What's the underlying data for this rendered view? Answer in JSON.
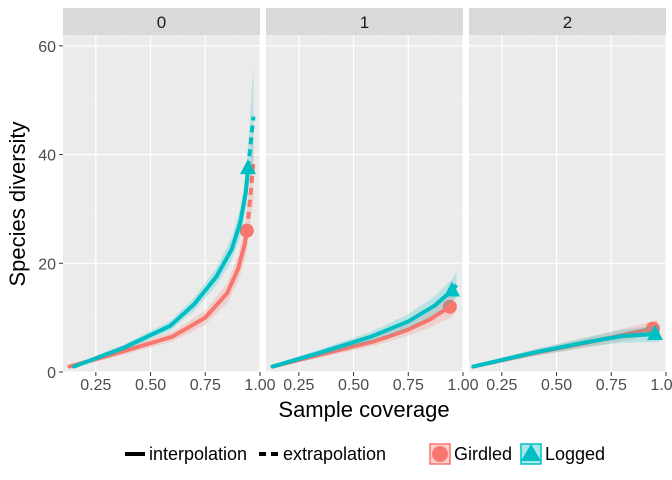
{
  "chart_data": {
    "type": "line",
    "xlabel": "Sample coverage",
    "ylabel": "Species diversity",
    "xlim": [
      0.1,
      1.0
    ],
    "ylim": [
      0,
      62
    ],
    "x_ticks": [
      0.25,
      0.5,
      0.75,
      1.0
    ],
    "x_tick_labels": [
      "0.25",
      "0.50",
      "0.75",
      "1.00"
    ],
    "y_ticks": [
      0,
      20,
      40,
      60
    ],
    "y_tick_labels": [
      "0",
      "20",
      "40",
      "60"
    ],
    "grid": true,
    "legend_position": "bottom",
    "legend": {
      "linetypes": [
        {
          "label": "interpolation",
          "style": "solid"
        },
        {
          "label": "extrapolation",
          "style": "dashed"
        }
      ],
      "groups": [
        {
          "label": "Girdled",
          "color": "#F8766D",
          "shape": "circle"
        },
        {
          "label": "Logged",
          "color": "#00BFC4",
          "shape": "triangle"
        }
      ]
    },
    "panels": [
      {
        "strip": "0",
        "series": [
          {
            "name": "Girdled",
            "color": "#F8766D",
            "interpolation": [
              [
                0.13,
                1
              ],
              [
                0.35,
                3.5
              ],
              [
                0.6,
                6.5
              ],
              [
                0.75,
                10
              ],
              [
                0.85,
                14.5
              ],
              [
                0.9,
                19
              ],
              [
                0.93,
                23.5
              ],
              [
                0.94,
                26
              ]
            ],
            "extrapolation": [
              [
                0.94,
                26
              ],
              [
                0.95,
                30
              ],
              [
                0.96,
                34
              ],
              [
                0.965,
                36.5
              ],
              [
                0.97,
                38.5
              ]
            ],
            "ci_half": [
              0.3,
              0.6,
              0.9,
              1.3,
              1.8,
              2.4,
              3.0,
              3.5
            ],
            "ci_half_ext": [
              3.5,
              4.5,
              5.5,
              6.5,
              7.5
            ],
            "observed": [
              0.94,
              26
            ]
          },
          {
            "name": "Logged",
            "color": "#00BFC4",
            "interpolation": [
              [
                0.15,
                1
              ],
              [
                0.38,
                4.5
              ],
              [
                0.59,
                8.5
              ],
              [
                0.7,
                12.5
              ],
              [
                0.8,
                17.5
              ],
              [
                0.87,
                22.5
              ],
              [
                0.91,
                27.5
              ],
              [
                0.935,
                33
              ],
              [
                0.945,
                37.5
              ]
            ],
            "extrapolation": [
              [
                0.945,
                37.5
              ],
              [
                0.955,
                41
              ],
              [
                0.962,
                44
              ],
              [
                0.97,
                47
              ]
            ],
            "ci_half": [
              0.3,
              0.6,
              0.9,
              1.2,
              1.6,
              2.1,
              2.7,
              3.3,
              4.0
            ],
            "ci_half_ext": [
              4.0,
              5.5,
              7.5,
              9.5
            ],
            "observed": [
              0.945,
              37.5
            ]
          }
        ]
      },
      {
        "strip": "1",
        "series": [
          {
            "name": "Girdled",
            "color": "#F8766D",
            "interpolation": [
              [
                0.13,
                1
              ],
              [
                0.35,
                3.2
              ],
              [
                0.6,
                5.7
              ],
              [
                0.75,
                7.8
              ],
              [
                0.85,
                9.7
              ],
              [
                0.92,
                11.5
              ],
              [
                0.94,
                12
              ]
            ],
            "extrapolation": [
              [
                0.94,
                12
              ],
              [
                0.95,
                12.5
              ],
              [
                0.96,
                13
              ]
            ],
            "ci_half": [
              0.3,
              0.5,
              0.8,
              1.1,
              1.5,
              1.9,
              2.1
            ],
            "ci_half_ext": [
              2.1,
              2.3,
              2.5
            ],
            "observed": [
              0.94,
              12
            ]
          },
          {
            "name": "Logged",
            "color": "#00BFC4",
            "interpolation": [
              [
                0.13,
                1
              ],
              [
                0.35,
                3.6
              ],
              [
                0.58,
                6.5
              ],
              [
                0.75,
                9.3
              ],
              [
                0.87,
                12.2
              ],
              [
                0.95,
                15
              ]
            ],
            "extrapolation": [
              [
                0.95,
                15
              ],
              [
                0.96,
                15.5
              ],
              [
                0.97,
                16
              ]
            ],
            "ci_half": [
              0.3,
              0.6,
              0.9,
              1.3,
              1.7,
              2.1
            ],
            "ci_half_ext": [
              2.1,
              2.3,
              2.5
            ],
            "observed": [
              0.95,
              15
            ]
          }
        ]
      },
      {
        "strip": "2",
        "series": [
          {
            "name": "Girdled",
            "color": "#F8766D",
            "interpolation": [
              [
                0.12,
                1
              ],
              [
                0.4,
                3.5
              ],
              [
                0.65,
                5.5
              ],
              [
                0.8,
                6.8
              ],
              [
                0.94,
                8
              ]
            ],
            "extrapolation": [
              [
                0.94,
                8
              ],
              [
                0.96,
                8.2
              ]
            ],
            "ci_half": [
              0.3,
              0.6,
              0.9,
              1.1,
              1.3
            ],
            "ci_half_ext": [
              1.3,
              1.4
            ],
            "observed": [
              0.94,
              8
            ]
          },
          {
            "name": "Logged",
            "color": "#00BFC4",
            "interpolation": [
              [
                0.12,
                1
              ],
              [
                0.4,
                3.6
              ],
              [
                0.65,
                5.6
              ],
              [
                0.8,
                6.6
              ],
              [
                0.95,
                7
              ]
            ],
            "extrapolation": [
              [
                0.95,
                7
              ],
              [
                0.97,
                7.1
              ]
            ],
            "ci_half": [
              0.3,
              0.6,
              0.9,
              1.2,
              1.5
            ],
            "ci_half_ext": [
              1.5,
              1.6
            ],
            "observed": [
              0.95,
              7
            ]
          }
        ]
      }
    ]
  }
}
